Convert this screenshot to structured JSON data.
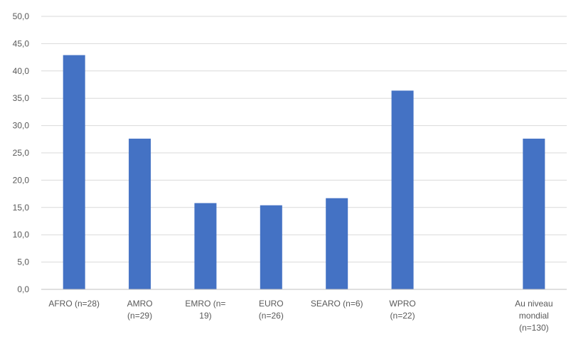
{
  "chart_data": {
    "type": "bar",
    "categories": [
      [
        "AFRO (n=28)"
      ],
      [
        "AMRO",
        "(n=29)"
      ],
      [
        "EMRO  (n=",
        "19)"
      ],
      [
        "EURO",
        "(n=26)"
      ],
      [
        "SEARO  (n=6)"
      ],
      [
        "WPRO",
        "(n=22)"
      ],
      [],
      [
        "Au niveau",
        "mondial",
        "(n=130)"
      ]
    ],
    "values": [
      42.9,
      27.6,
      15.8,
      15.4,
      16.7,
      36.4,
      null,
      27.6
    ],
    "ylim": [
      0,
      50
    ],
    "yticks": [
      "0,0",
      "5,0",
      "10,0",
      "15,0",
      "20,0",
      "25,0",
      "30,0",
      "35,0",
      "40,0",
      "45,0",
      "50,0"
    ],
    "grid": true,
    "bar_color": "#4472c4",
    "title": "",
    "xlabel": "",
    "ylabel": ""
  }
}
